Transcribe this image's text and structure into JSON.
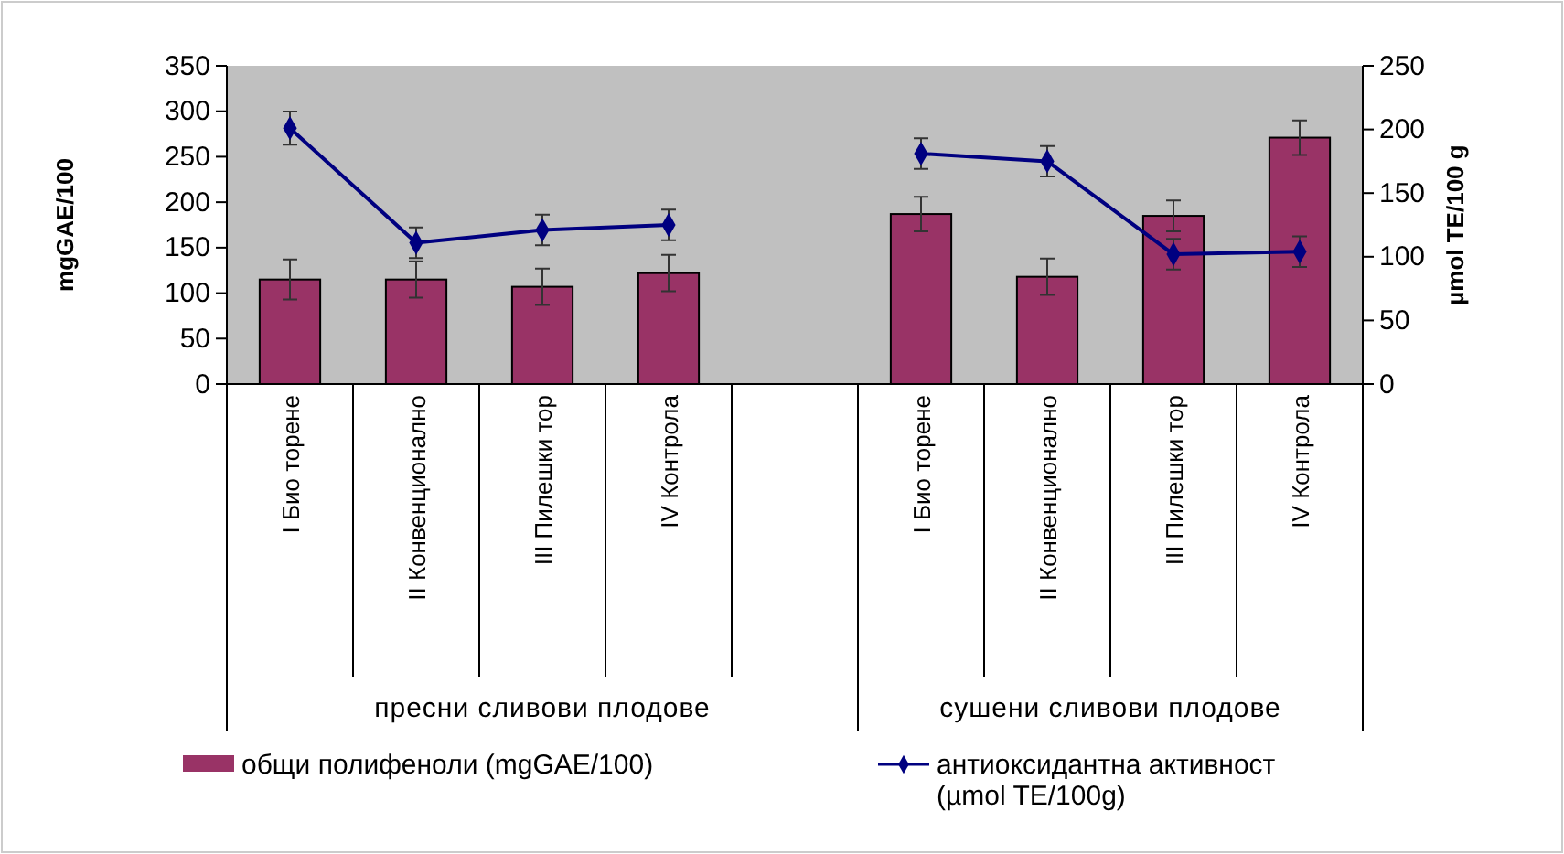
{
  "chart_data": {
    "type": "bar",
    "ylabel": "mgGAE/100",
    "y2label": "µmol TE/100 g",
    "categories": [
      "I Био торене",
      "II Конвенционално",
      "III Пилешки тор",
      "IV Контрола",
      null,
      "I Био торене",
      "II Конвенционално",
      "III Пилешки тор",
      "IV Контрола"
    ],
    "series": [
      {
        "name": "общи полифеноли  (mgGAE/100)",
        "color": "#993366",
        "values": [
          115,
          115,
          107,
          122,
          null,
          187,
          118,
          185,
          271
        ],
        "errors": [
          22,
          20,
          20,
          20,
          null,
          19,
          20,
          17,
          19
        ]
      },
      {
        "name": "антиоксидантна активност (µmol TE/100g)",
        "type": "line",
        "axis": "y2",
        "color": "#000080",
        "values": [
          201,
          111,
          121,
          125,
          null,
          181,
          175,
          102,
          104
        ],
        "errors": [
          13,
          12,
          12,
          12,
          null,
          12,
          12,
          12,
          12
        ]
      }
    ],
    "ylim": [
      0,
      350
    ],
    "yticks": [
      0,
      50,
      100,
      150,
      200,
      250,
      300,
      350
    ],
    "y2lim": [
      0,
      250
    ],
    "y2ticks": [
      0,
      50,
      100,
      150,
      200,
      250
    ],
    "annotations": [
      "пресни сливови плодове",
      "сушени сливови плодове"
    ],
    "marker": "diamond",
    "grid": false,
    "legend": "bottom"
  }
}
